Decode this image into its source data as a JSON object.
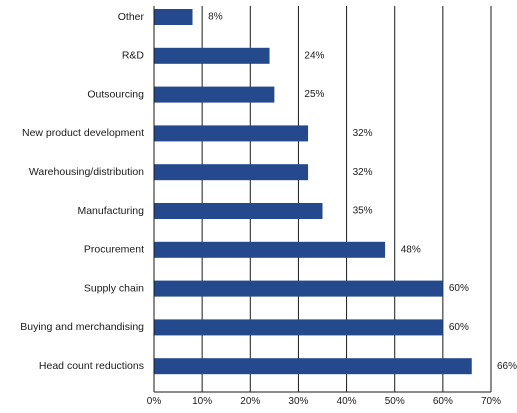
{
  "chart_data": {
    "type": "bar",
    "orientation": "horizontal",
    "title": "",
    "xlabel": "",
    "ylabel": "",
    "categories": [
      "Other",
      "R&D",
      "Outsourcing",
      "New product development",
      "Warehousing/distribution",
      "Manufacturing",
      "Procurement",
      "Supply chain",
      "Buying and merchandising",
      "Head count reductions"
    ],
    "values": [
      8,
      24,
      25,
      32,
      32,
      35,
      48,
      60,
      60,
      66
    ],
    "data_labels": [
      "8%",
      "24%",
      "25%",
      "32%",
      "32%",
      "35%",
      "48%",
      "60%",
      "60%",
      "66%"
    ],
    "xlim": [
      0,
      70
    ],
    "x_ticks": [
      0,
      10,
      20,
      30,
      40,
      50,
      60,
      70
    ],
    "x_tick_labels": [
      "0%",
      "10%",
      "20%",
      "30%",
      "40%",
      "50%",
      "60%",
      "70%"
    ],
    "grid": "vertical",
    "legend": "none",
    "bar_color": "#24498c",
    "grid_color": "#1a1a1a"
  }
}
